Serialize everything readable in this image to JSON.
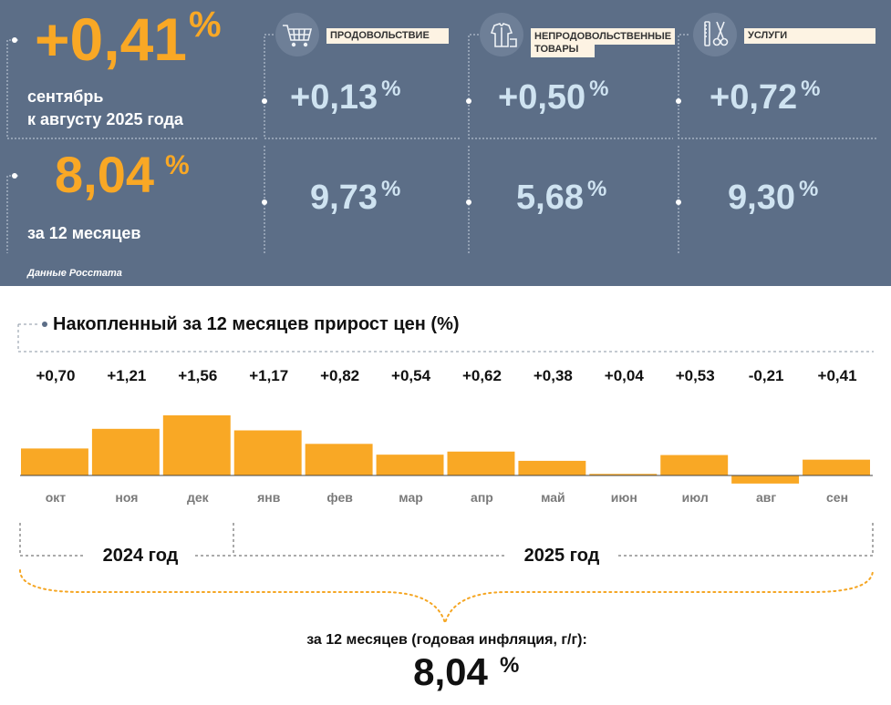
{
  "header": {
    "monthly_value": "+0,41",
    "monthly_caption_1": "сентябрь",
    "monthly_caption_2": "к августу 2025 года",
    "annual_value": "8,04",
    "annual_caption": "за 12 месяцев",
    "pct": "%",
    "source": "Данные Росстата",
    "categories": [
      {
        "label": "ПРОДОВОЛЬСТВИЕ",
        "monthly": "+0,13",
        "annual": "9,73",
        "icon": "shopping-cart-icon"
      },
      {
        "label_1": "НЕПРОДОВОЛЬСТВЕННЫЕ",
        "label_2": "ТОВАРЫ",
        "monthly": "+0,50",
        "annual": "5,68",
        "icon": "clothing-icon"
      },
      {
        "label": "УСЛУГИ",
        "monthly": "+0,72",
        "annual": "9,30",
        "icon": "scissors-comb-icon"
      }
    ]
  },
  "chart_data": {
    "type": "bar",
    "title": "Накопленный за 12 месяцев прирост цен (%)",
    "categories": [
      "окт",
      "ноя",
      "дек",
      "янв",
      "фев",
      "мар",
      "апр",
      "май",
      "июн",
      "июл",
      "авг",
      "сен"
    ],
    "values": [
      0.7,
      1.21,
      1.56,
      1.17,
      0.82,
      0.54,
      0.62,
      0.38,
      0.04,
      0.53,
      -0.21,
      0.41
    ],
    "value_labels": [
      "+0,70",
      "+1,21",
      "+1,56",
      "+1,17",
      "+0,82",
      "+0,54",
      "+0,62",
      "+0,38",
      "+0,04",
      "+0,53",
      "-0,21",
      "+0,41"
    ],
    "bar_color": "#f9a825",
    "year_labels": [
      "2024 год",
      "2025 год"
    ],
    "summary_caption": "за 12 месяцев (годовая инфляция, г/г):",
    "summary_value": "8,04",
    "summary_pct": "%"
  },
  "colors": {
    "panel": "#5c6e87",
    "accent": "#f9a825",
    "light_blue": "#cfe3f1"
  }
}
